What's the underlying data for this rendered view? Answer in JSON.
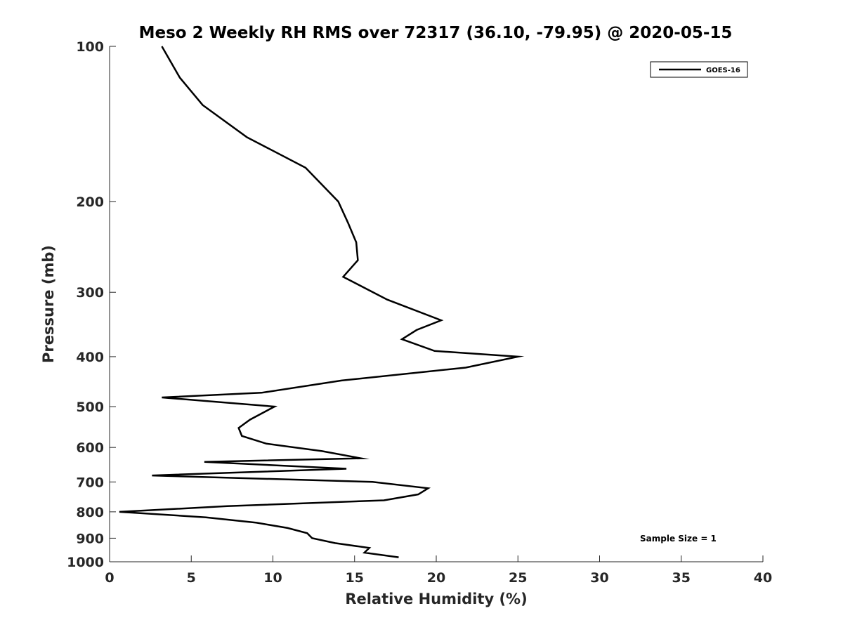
{
  "chart_data": {
    "type": "line",
    "title": "Meso 2 Weekly RH RMS over 72317 (36.10, -79.95) @ 2020-05-15",
    "xlabel": "Relative Humidity (%)",
    "ylabel": "Pressure (mb)",
    "xlim": [
      0,
      40
    ],
    "ylim": [
      100,
      1000
    ],
    "y_scale": "log",
    "y_reversed": true,
    "x_ticks": [
      "0",
      "5",
      "10",
      "15",
      "20",
      "25",
      "30",
      "35",
      "40"
    ],
    "y_ticks": [
      "100",
      "200",
      "300",
      "400",
      "500",
      "600",
      "700",
      "800",
      "900",
      "1000"
    ],
    "grid": false,
    "legend_position": "top-right",
    "annotation": "Sample Size = 1",
    "series": [
      {
        "name": "GOES-16",
        "color": "#000000",
        "x": [
          3.2,
          4.3,
          5.7,
          8.4,
          12.0,
          14.0,
          14.6,
          15.1,
          15.2,
          14.3,
          17.0,
          20.3,
          18.8,
          17.9,
          19.9,
          25.0,
          21.8,
          14.2,
          9.3,
          3.2,
          10.1,
          8.6,
          7.9,
          8.1,
          9.6,
          13.0,
          15.4,
          5.8,
          14.5,
          2.6,
          16.1,
          19.5,
          18.9,
          16.8,
          7.2,
          0.6,
          5.9,
          9.0,
          10.9,
          12.1,
          12.4,
          13.8,
          15.9,
          15.6,
          17.7
        ],
        "y": [
          100,
          115,
          130,
          150,
          172,
          200,
          220,
          240,
          260,
          280,
          310,
          340,
          355,
          370,
          390,
          400,
          420,
          445,
          470,
          480,
          500,
          530,
          550,
          570,
          590,
          610,
          630,
          640,
          660,
          680,
          700,
          720,
          740,
          760,
          780,
          800,
          820,
          840,
          860,
          880,
          900,
          920,
          940,
          960,
          980
        ]
      }
    ]
  }
}
